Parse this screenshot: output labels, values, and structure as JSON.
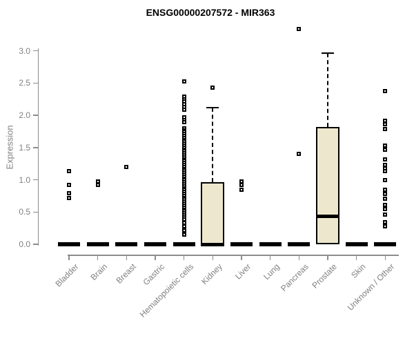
{
  "chart_data": {
    "type": "boxplot",
    "title": "ENSG00000207572 - MIR363",
    "ylabel": "Expression",
    "xlabel": "",
    "ylim": [
      0,
      3.0
    ],
    "ytick_values": [
      0,
      0.5,
      1,
      1.5,
      2,
      2.5,
      3
    ],
    "ytick_labels": [
      "0.0",
      "0.5",
      "1.0",
      "1.5",
      "2.0",
      "2.5",
      "3.0"
    ],
    "grid": false,
    "legend": false,
    "categories": [
      "Bladder",
      "Brain",
      "Breast",
      "Gastric",
      "Hematopoietic cells",
      "Kidney",
      "Liver",
      "Lung",
      "Pancreas",
      "Prostate",
      "Skin",
      "Unknown / Other"
    ],
    "colors": {
      "box_fill": "#EDE8CD",
      "box_border": "#000000",
      "median": "#000000",
      "whisker": "#000000",
      "outlier": "#000000",
      "axis": "#8C8C8C",
      "tick_label": "#808080",
      "title": "#000000"
    },
    "boxes": [
      {
        "category": "Bladder",
        "q1": 0,
        "median": 0,
        "q3": 0,
        "whisker_low": 0,
        "whisker_high": 0,
        "outliers": [
          1.13,
          0.92,
          0.79,
          0.72
        ]
      },
      {
        "category": "Brain",
        "q1": 0,
        "median": 0,
        "q3": 0,
        "whisker_low": 0,
        "whisker_high": 0,
        "outliers": [
          0.97,
          0.92
        ]
      },
      {
        "category": "Breast",
        "q1": 0,
        "median": 0,
        "q3": 0,
        "whisker_low": 0,
        "whisker_high": 0,
        "outliers": [
          1.2
        ]
      },
      {
        "category": "Gastric",
        "q1": 0,
        "median": 0,
        "q3": 0,
        "whisker_low": 0,
        "whisker_high": 0,
        "outliers": []
      },
      {
        "category": "Hematopoietic cells",
        "q1": 0,
        "median": 0,
        "q3": 0,
        "whisker_low": 0,
        "whisker_high": 0,
        "outliers": [
          2.52,
          2.29,
          2.25,
          2.21,
          2.17,
          2.13,
          2.09,
          1.97,
          1.93,
          1.89,
          1.8,
          1.77,
          1.74,
          1.71,
          1.68,
          1.65,
          1.62,
          1.59,
          1.56,
          1.53,
          1.5,
          1.47,
          1.44,
          1.41,
          1.38,
          1.35,
          1.32,
          1.29,
          1.26,
          1.23,
          1.2,
          1.17,
          1.14,
          1.11,
          1.08,
          1.05,
          1.02,
          0.99,
          0.96,
          0.93,
          0.9,
          0.87,
          0.84,
          0.81,
          0.78,
          0.75,
          0.72,
          0.69,
          0.66,
          0.63,
          0.6,
          0.57,
          0.54,
          0.51,
          0.48,
          0.45,
          0.42,
          0.38,
          0.33,
          0.28,
          0.21,
          0.15
        ]
      },
      {
        "category": "Kidney",
        "q1": 0,
        "median": 0,
        "q3": 0.96,
        "whisker_low": 0,
        "whisker_high": 2.12,
        "outliers": [
          2.43
        ]
      },
      {
        "category": "Liver",
        "q1": 0,
        "median": 0,
        "q3": 0,
        "whisker_low": 0,
        "whisker_high": 0,
        "outliers": [
          0.97,
          0.92,
          0.85
        ]
      },
      {
        "category": "Lung",
        "q1": 0,
        "median": 0,
        "q3": 0,
        "whisker_low": 0,
        "whisker_high": 0,
        "outliers": []
      },
      {
        "category": "Pancreas",
        "q1": 0,
        "median": 0,
        "q3": 0,
        "whisker_low": 0,
        "whisker_high": 0,
        "outliers": [
          3.34,
          1.4
        ]
      },
      {
        "category": "Prostate",
        "q1": 0,
        "median": 0.43,
        "q3": 1.82,
        "whisker_low": 0,
        "whisker_high": 2.96,
        "outliers": []
      },
      {
        "category": "Skin",
        "q1": 0,
        "median": 0,
        "q3": 0,
        "whisker_low": 0,
        "whisker_high": 0,
        "outliers": []
      },
      {
        "category": "Unknown / Other",
        "q1": 0,
        "median": 0,
        "q3": 0,
        "whisker_low": 0,
        "whisker_high": 0,
        "outliers": [
          2.37,
          1.91,
          1.86,
          1.79,
          1.53,
          1.46,
          1.32,
          1.23,
          1.18,
          1.13,
          1.0,
          0.84,
          0.78,
          0.71,
          0.61,
          0.55,
          0.46,
          0.34,
          0.28
        ]
      }
    ]
  }
}
